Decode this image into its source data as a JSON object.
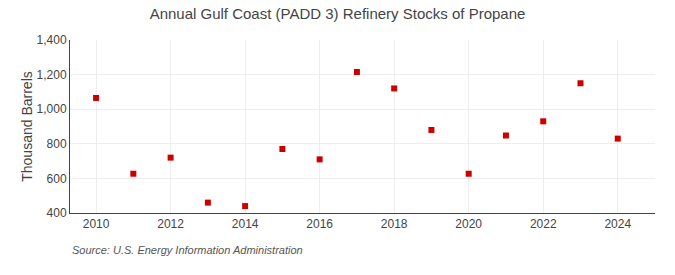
{
  "chart_data": {
    "type": "scatter",
    "title": "Annual Gulf Coast (PADD 3) Refinery Stocks of Propane",
    "ylabel": "Thousand Barrels",
    "annotations": [
      "Source: U.S. Energy Information Administration"
    ],
    "x": [
      2010,
      2011,
      2012,
      2013,
      2014,
      2015,
      2016,
      2017,
      2018,
      2019,
      2020,
      2021,
      2022,
      2023,
      2024
    ],
    "values": [
      1065,
      627,
      720,
      460,
      440,
      770,
      710,
      1215,
      1120,
      880,
      627,
      848,
      930,
      1150,
      830
    ],
    "color": "#cc0000",
    "marker": "square",
    "xlim": [
      2009.3,
      2025.0
    ],
    "xticks": [
      2010,
      2012,
      2014,
      2016,
      2018,
      2020,
      2022,
      2024
    ],
    "ylim": [
      400,
      1400
    ],
    "yticks": [
      400,
      600,
      800,
      {
        "value": 1000,
        "label": "1,000"
      },
      {
        "value": 1200,
        "label": "1,200"
      },
      {
        "value": 1400,
        "label": "1,400"
      }
    ],
    "grid": true
  }
}
